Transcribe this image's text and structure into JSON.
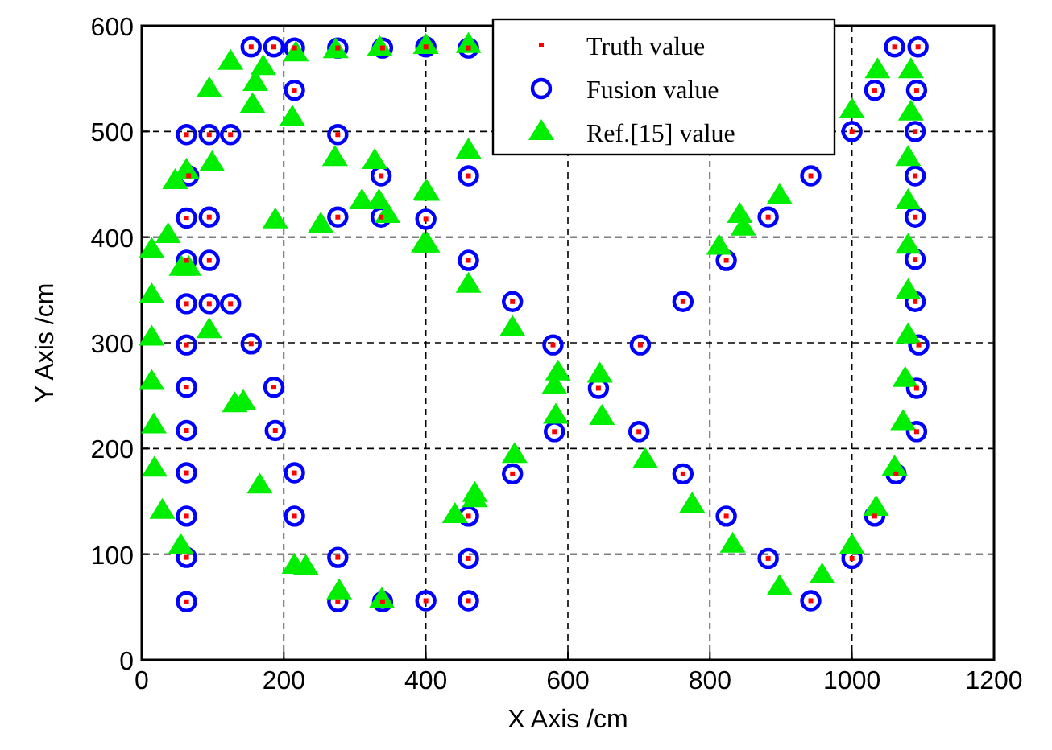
{
  "chart_data": {
    "type": "scatter",
    "xlabel": "X Axis /cm",
    "ylabel": "Y Axis /cm",
    "xlim": [
      0,
      1200
    ],
    "ylim": [
      0,
      600
    ],
    "xticks": [
      0,
      200,
      400,
      600,
      800,
      1000,
      1200
    ],
    "yticks": [
      0,
      100,
      200,
      300,
      400,
      500,
      600
    ],
    "grid": true,
    "legend": "top right",
    "series": [
      {
        "name": "Truth value",
        "color": "#ff0000",
        "marker": "square",
        "x": [
          154,
          186,
          215,
          276,
          339,
          400,
          460,
          215,
          63,
          95,
          125,
          276,
          66,
          337,
          460,
          63,
          95,
          276,
          337,
          400,
          63,
          95,
          460,
          63,
          95,
          125,
          522,
          63,
          154,
          579,
          63,
          186,
          643,
          63,
          188,
          581,
          63,
          215,
          522,
          63,
          215,
          460,
          63,
          276,
          460,
          63,
          276,
          339,
          400,
          460,
          702,
          762,
          823,
          882,
          942,
          1000,
          1032,
          1060,
          1093,
          1091,
          1089,
          1089,
          1089,
          1089,
          1089,
          1094,
          1091,
          1091,
          1062,
          1032,
          1000,
          942,
          882,
          823,
          762,
          700
        ],
        "values": [
          580,
          580,
          579,
          579,
          579,
          580,
          579,
          539,
          497,
          497,
          497,
          497,
          458,
          458,
          458,
          418,
          419,
          419,
          419,
          417,
          378,
          378,
          378,
          337,
          337,
          337,
          339,
          298,
          299,
          298,
          258,
          258,
          257,
          217,
          217,
          216,
          177,
          177,
          176,
          136,
          136,
          136,
          97,
          97,
          96,
          55,
          55,
          55,
          56,
          56,
          298,
          339,
          378,
          419,
          458,
          500,
          539,
          580,
          580,
          539,
          500,
          458,
          419,
          379,
          339,
          298,
          257,
          216,
          176,
          136,
          96,
          56,
          96,
          136,
          176,
          216
        ]
      },
      {
        "name": "Fusion value",
        "color": "#0000ff",
        "marker": "circle",
        "x": [
          154,
          186,
          215,
          276,
          339,
          400,
          460,
          215,
          63,
          95,
          125,
          276,
          66,
          337,
          460,
          63,
          95,
          276,
          337,
          400,
          63,
          95,
          460,
          63,
          95,
          125,
          522,
          63,
          154,
          579,
          63,
          186,
          643,
          63,
          188,
          581,
          63,
          215,
          522,
          63,
          215,
          460,
          63,
          276,
          460,
          63,
          276,
          339,
          400,
          460,
          702,
          762,
          823,
          882,
          942,
          1000,
          1032,
          1060,
          1093,
          1091,
          1089,
          1089,
          1089,
          1089,
          1089,
          1094,
          1091,
          1091,
          1062,
          1032,
          1000,
          942,
          882,
          823,
          762,
          700
        ],
        "values": [
          580,
          580,
          579,
          579,
          579,
          580,
          579,
          539,
          497,
          497,
          497,
          497,
          458,
          458,
          458,
          418,
          419,
          419,
          419,
          417,
          378,
          378,
          378,
          337,
          337,
          337,
          339,
          298,
          299,
          298,
          258,
          258,
          257,
          217,
          217,
          216,
          177,
          177,
          176,
          136,
          136,
          136,
          97,
          97,
          96,
          55,
          55,
          55,
          56,
          56,
          298,
          339,
          378,
          419,
          458,
          500,
          539,
          580,
          580,
          539,
          500,
          458,
          419,
          379,
          339,
          298,
          257,
          216,
          176,
          136,
          96,
          56,
          96,
          136,
          176,
          216
        ]
      },
      {
        "name": "Ref.[15] value",
        "color": "#00ee00",
        "marker": "triangle",
        "x": [
          125,
          171,
          217,
          273,
          335,
          400,
          160,
          95,
          156,
          212,
          272,
          328,
          99,
          63,
          47,
          400,
          310,
          334,
          346,
          188,
          252,
          397,
          37,
          14,
          56,
          66,
          14,
          95,
          14,
          14,
          131,
          143,
          17,
          18,
          166,
          29,
          55,
          215,
          231,
          278,
          338,
          460,
          460,
          402,
          402,
          460,
          522,
          586,
          581,
          645,
          583,
          648,
          525,
          709,
          469,
          469,
          441,
          775,
          832,
          813,
          842,
          847,
          898,
          1000,
          1036,
          1083,
          1083,
          1079,
          1079,
          1079,
          1079,
          1079,
          1075,
          1072,
          1060,
          1034,
          1000,
          958,
          898
        ],
        "values": [
          566,
          561,
          574,
          577,
          579,
          581,
          546,
          540,
          525,
          513,
          475,
          472,
          470,
          463,
          453,
          443,
          434,
          434,
          421,
          416,
          412,
          393,
          402,
          388,
          371,
          371,
          345,
          312,
          305,
          263,
          242,
          244,
          222,
          181,
          165,
          141,
          108,
          89,
          88,
          65,
          57,
          582,
          482,
          442,
          393,
          355,
          314,
          272,
          259,
          270,
          231,
          230,
          194,
          189,
          157,
          152,
          137,
          147,
          109,
          391,
          421,
          409,
          439,
          520,
          558,
          558,
          518,
          475,
          434,
          392,
          349,
          307,
          266,
          225,
          182,
          144,
          108,
          80,
          69
        ]
      }
    ]
  }
}
